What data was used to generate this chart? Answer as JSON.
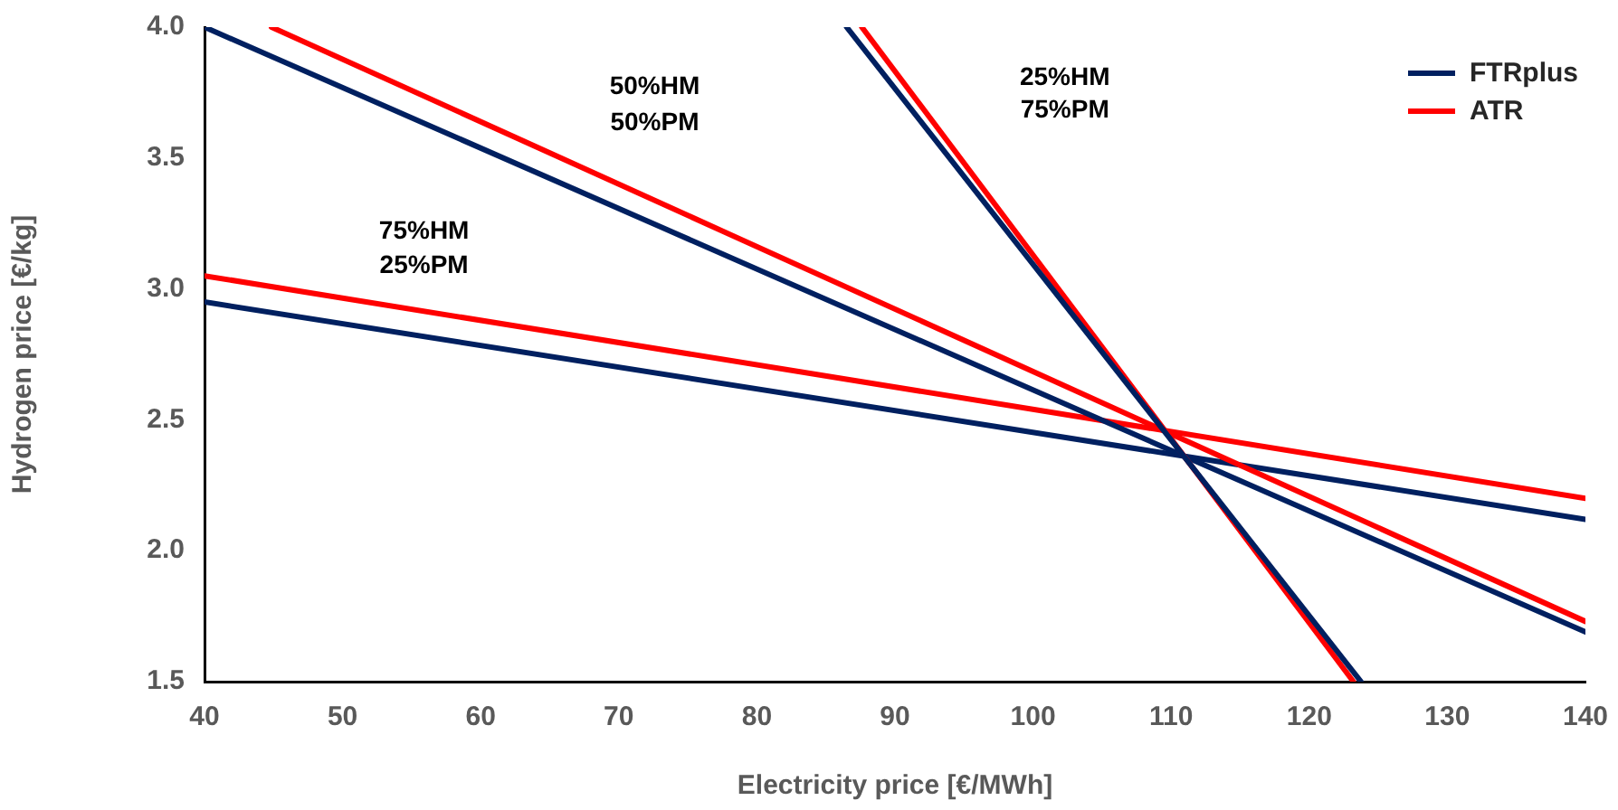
{
  "chart_data": {
    "type": "line",
    "xlabel": "Electricity price [€/MWh]",
    "ylabel": "Hydrogen price [€/kg]",
    "xlim": [
      40,
      140
    ],
    "xticks": [
      40,
      50,
      60,
      70,
      80,
      90,
      100,
      110,
      120,
      130,
      140
    ],
    "ylim": [
      1.5,
      4.0
    ],
    "yticks": [
      {
        "value": 1.5,
        "label": "1.5"
      },
      {
        "value": 2.0,
        "label": "2.0"
      },
      {
        "value": 2.5,
        "label": "2.5"
      },
      {
        "value": 3.0,
        "label": "3.0"
      },
      {
        "value": 3.5,
        "label": "3.5"
      },
      {
        "value": 4.0,
        "label": "4.0"
      }
    ],
    "grid": false,
    "legend": "top right",
    "marker": "none",
    "line_style": "solid",
    "series": [
      {
        "name": "FTRplus",
        "color": "#002060",
        "x": [
          86.5,
          123.75
        ],
        "values": [
          4.0,
          1.5
        ]
      },
      {
        "name": "ATR",
        "color": "#ff0000",
        "x": [
          87.6,
          123.2
        ],
        "values": [
          4.0,
          1.5
        ]
      },
      {
        "color": "#002060",
        "x": [
          40,
          140
        ],
        "values": [
          4.0,
          1.69
        ]
      },
      {
        "color": "#ff0000",
        "x": [
          44.85,
          140
        ],
        "values": [
          4.0,
          1.73
        ]
      },
      {
        "color": "#002060",
        "x": [
          40,
          140
        ],
        "values": [
          2.95,
          2.12
        ]
      },
      {
        "color": "#ff0000",
        "x": [
          40,
          140
        ],
        "values": [
          3.05,
          2.2
        ]
      }
    ],
    "annotations": [
      "50%HM",
      "50%PM",
      "25%HM",
      "75%PM",
      "75%HM",
      "25%PM"
    ]
  }
}
